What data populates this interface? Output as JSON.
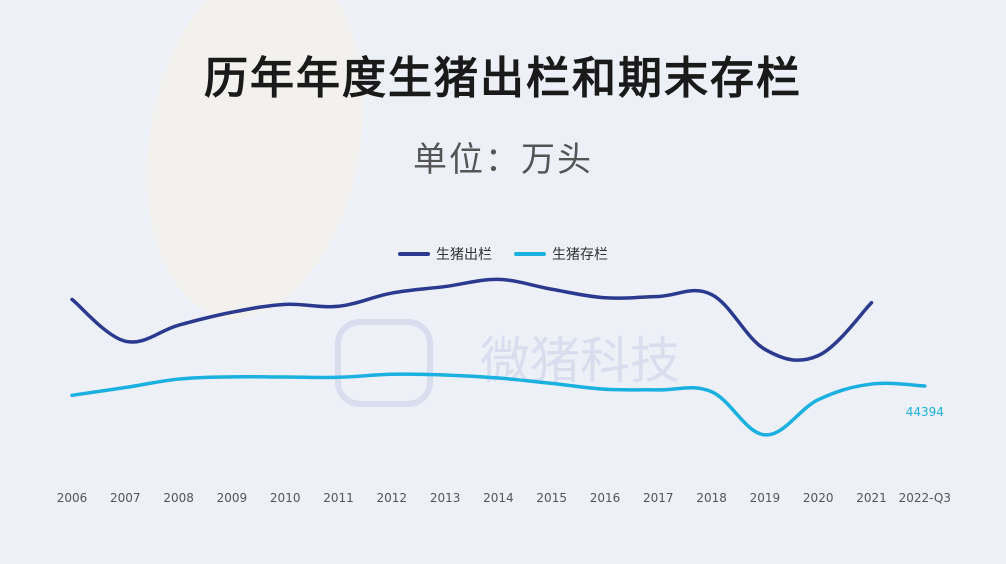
{
  "chart_data": {
    "type": "line",
    "title": "历年年度生猪出栏和期末存栏",
    "subtitle": "单位：万头",
    "categories": [
      "2006",
      "2007",
      "2008",
      "2009",
      "2010",
      "2011",
      "2012",
      "2013",
      "2014",
      "2015",
      "2016",
      "2017",
      "2018",
      "2019",
      "2020",
      "2021",
      "2022-Q3"
    ],
    "series": [
      {
        "name": "生猪出栏",
        "color": "#2b3a8f",
        "values": [
          68050,
          56640,
          61020,
          64540,
          66690,
          66170,
          69790,
          71560,
          73510,
          70830,
          68500,
          68860,
          69380,
          54420,
          52700,
          67130,
          null
        ]
      },
      {
        "name": "生猪存栏",
        "color": "#1ab0e0",
        "values": [
          41850,
          43990,
          46290,
          46900,
          46840,
          46770,
          47590,
          47410,
          46580,
          45110,
          43500,
          43330,
          42820,
          31040,
          40650,
          44920,
          44394
        ]
      }
    ],
    "data_labels": [
      {
        "series": 1,
        "index": 16,
        "text": "44394"
      }
    ],
    "watermark": "微猪科技",
    "legend_position": "top-center",
    "grid": false
  }
}
